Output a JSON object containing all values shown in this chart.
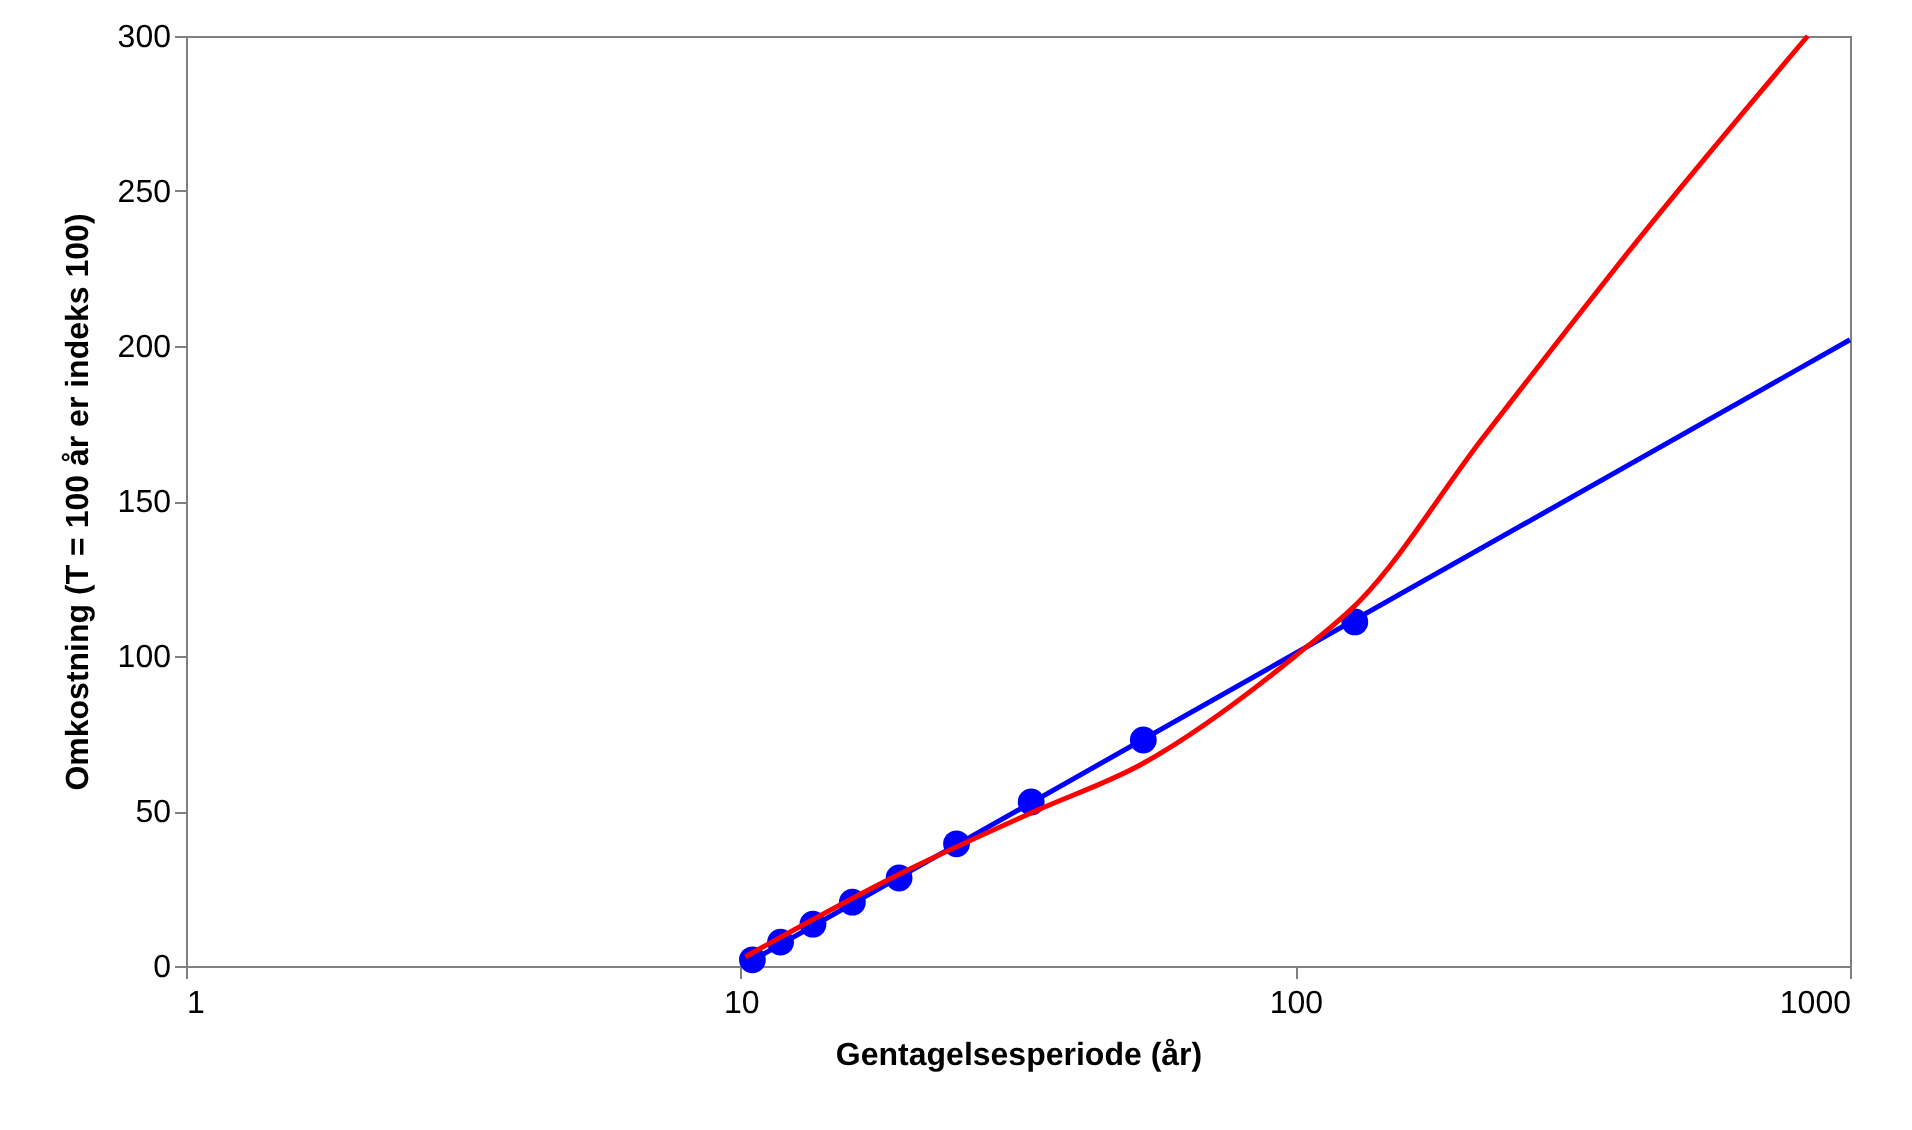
{
  "chart_data": {
    "type": "scatter",
    "xlabel": "Gentagelsesperiode (år)",
    "ylabel": "Omkostning (T = 100 år er indeks 100)",
    "log": "x",
    "xlim": [
      1,
      1000
    ],
    "xticks": [
      1,
      10,
      100,
      1000
    ],
    "ylim": [
      0,
      300
    ],
    "yticks": [
      0,
      50,
      100,
      150,
      200,
      250,
      300
    ],
    "grid": false,
    "series": [
      {
        "type": "line",
        "color": "#0000ff",
        "x": [
          10.3,
          1000
        ],
        "values": [
          1,
          202
        ],
        "marker": "none",
        "line_style": "solid"
      },
      {
        "color": "#0000ff",
        "x": [
          10.5,
          11.8,
          13.5,
          15.9,
          19.3,
          24.5,
          33.4,
          53.2,
          128
        ],
        "values": [
          2,
          7.7,
          13.5,
          20.6,
          28.4,
          39.4,
          52.9,
          72.9,
          111
        ],
        "marker": "circle"
      },
      {
        "type": "line",
        "color": "#ff0000",
        "x": [
          10.2,
          19.5,
          34,
          52.7,
          100,
          131,
          217,
          302,
          397,
          839
        ],
        "values": [
          3,
          30,
          50,
          65,
          100,
          118,
          170,
          203,
          230,
          300
        ],
        "marker": "none",
        "line_style": "solid"
      }
    ]
  }
}
